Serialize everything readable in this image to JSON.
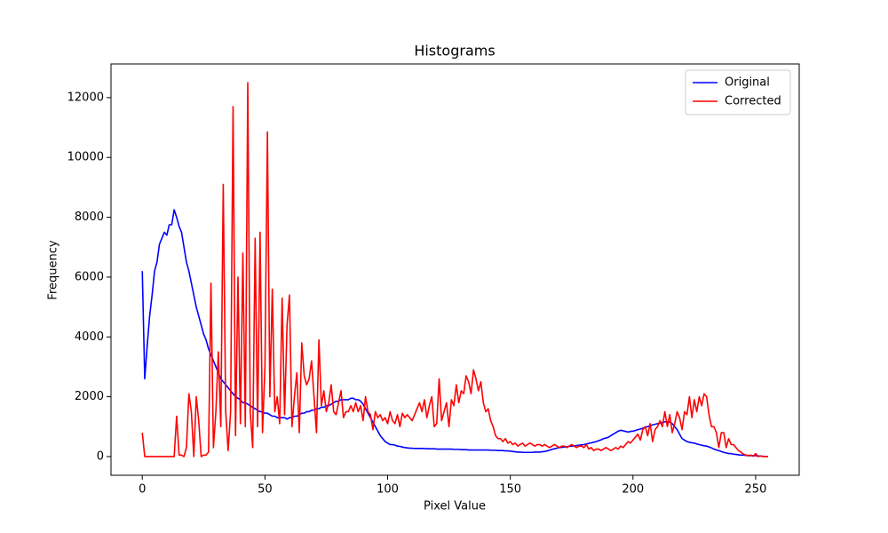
{
  "chart_data": {
    "type": "line",
    "title": "Histograms",
    "x_label": "Pixel Value",
    "y_label": "Frequency",
    "x": [
      0,
      1,
      2,
      3,
      4,
      5,
      6,
      7,
      8,
      9,
      10,
      11,
      12,
      13,
      14,
      15,
      16,
      17,
      18,
      19,
      20,
      21,
      22,
      23,
      24,
      25,
      26,
      27,
      28,
      29,
      30,
      31,
      32,
      33,
      34,
      35,
      36,
      37,
      38,
      39,
      40,
      41,
      42,
      43,
      44,
      45,
      46,
      47,
      48,
      49,
      50,
      51,
      52,
      53,
      54,
      55,
      56,
      57,
      58,
      59,
      60,
      61,
      62,
      63,
      64,
      65,
      66,
      67,
      68,
      69,
      70,
      71,
      72,
      73,
      74,
      75,
      76,
      77,
      78,
      79,
      80,
      81,
      82,
      83,
      84,
      85,
      86,
      87,
      88,
      89,
      90,
      91,
      92,
      93,
      94,
      95,
      96,
      97,
      98,
      99,
      100,
      101,
      102,
      103,
      104,
      105,
      106,
      107,
      108,
      109,
      110,
      111,
      112,
      113,
      114,
      115,
      116,
      117,
      118,
      119,
      120,
      121,
      122,
      123,
      124,
      125,
      126,
      127,
      128,
      129,
      130,
      131,
      132,
      133,
      134,
      135,
      136,
      137,
      138,
      139,
      140,
      141,
      142,
      143,
      144,
      145,
      146,
      147,
      148,
      149,
      150,
      151,
      152,
      153,
      154,
      155,
      156,
      157,
      158,
      159,
      160,
      161,
      162,
      163,
      164,
      165,
      166,
      167,
      168,
      169,
      170,
      171,
      172,
      173,
      174,
      175,
      176,
      177,
      178,
      179,
      180,
      181,
      182,
      183,
      184,
      185,
      186,
      187,
      188,
      189,
      190,
      191,
      192,
      193,
      194,
      195,
      196,
      197,
      198,
      199,
      200,
      201,
      202,
      203,
      204,
      205,
      206,
      207,
      208,
      209,
      210,
      211,
      212,
      213,
      214,
      215,
      216,
      217,
      218,
      219,
      220,
      221,
      222,
      223,
      224,
      225,
      226,
      227,
      228,
      229,
      230,
      231,
      232,
      233,
      234,
      235,
      236,
      237,
      238,
      239,
      240,
      241,
      242,
      243,
      244,
      245,
      246,
      247,
      248,
      249,
      250,
      251,
      252,
      253,
      254,
      255
    ],
    "series": [
      {
        "name": "Original",
        "color": "#0000ff",
        "values": [
          6200,
          2600,
          3700,
          4700,
          5400,
          6200,
          6500,
          7100,
          7300,
          7500,
          7400,
          7750,
          7750,
          8250,
          8000,
          7700,
          7500,
          7000,
          6500,
          6200,
          5800,
          5400,
          5000,
          4700,
          4400,
          4100,
          3900,
          3600,
          3400,
          3200,
          3000,
          2800,
          2600,
          2500,
          2400,
          2300,
          2200,
          2100,
          2000,
          1950,
          1900,
          1800,
          1800,
          1750,
          1700,
          1650,
          1600,
          1550,
          1500,
          1500,
          1450,
          1450,
          1400,
          1350,
          1350,
          1300,
          1300,
          1300,
          1300,
          1250,
          1300,
          1300,
          1350,
          1350,
          1400,
          1450,
          1450,
          1500,
          1500,
          1550,
          1550,
          1600,
          1600,
          1650,
          1650,
          1700,
          1700,
          1750,
          1800,
          1850,
          1850,
          1900,
          1900,
          1900,
          1900,
          1950,
          1950,
          1900,
          1900,
          1850,
          1750,
          1600,
          1450,
          1300,
          1150,
          1000,
          850,
          700,
          600,
          500,
          450,
          400,
          400,
          380,
          350,
          340,
          320,
          300,
          290,
          280,
          280,
          270,
          270,
          270,
          270,
          270,
          260,
          260,
          260,
          260,
          250,
          250,
          250,
          250,
          250,
          250,
          250,
          240,
          240,
          240,
          230,
          230,
          230,
          220,
          220,
          220,
          220,
          220,
          220,
          220,
          220,
          220,
          210,
          210,
          210,
          200,
          200,
          200,
          190,
          190,
          180,
          170,
          160,
          150,
          150,
          140,
          140,
          140,
          140,
          140,
          150,
          150,
          150,
          160,
          170,
          190,
          210,
          240,
          260,
          280,
          300,
          310,
          320,
          330,
          340,
          350,
          360,
          370,
          380,
          390,
          400,
          420,
          440,
          460,
          480,
          500,
          530,
          560,
          600,
          620,
          650,
          700,
          750,
          800,
          850,
          880,
          860,
          840,
          820,
          840,
          850,
          870,
          900,
          920,
          950,
          980,
          1000,
          1030,
          1060,
          1080,
          1100,
          1120,
          1140,
          1160,
          1170,
          1150,
          1100,
          1000,
          900,
          750,
          600,
          550,
          500,
          480,
          460,
          450,
          420,
          400,
          380,
          360,
          350,
          320,
          290,
          250,
          220,
          200,
          170,
          140,
          120,
          100,
          100,
          80,
          70,
          60,
          50,
          50,
          40,
          40,
          30,
          30,
          30,
          20,
          20,
          10,
          5,
          0
        ]
      },
      {
        "name": "Corrected",
        "color": "#ff0000",
        "values": [
          800,
          0,
          0,
          0,
          0,
          0,
          0,
          0,
          0,
          0,
          0,
          0,
          0,
          0,
          1350,
          50,
          50,
          0,
          300,
          2100,
          1500,
          0,
          2000,
          1200,
          0,
          50,
          50,
          150,
          5800,
          300,
          1500,
          3500,
          1000,
          9100,
          1500,
          200,
          1500,
          11700,
          700,
          6000,
          1100,
          6800,
          1000,
          12500,
          1500,
          300,
          7300,
          1000,
          7500,
          800,
          3000,
          10850,
          2000,
          5600,
          1500,
          2000,
          1100,
          5300,
          1400,
          4400,
          5400,
          1000,
          2000,
          2800,
          800,
          3800,
          2700,
          2400,
          2600,
          3200,
          2000,
          800,
          3900,
          1700,
          2200,
          1500,
          1800,
          2400,
          1500,
          1400,
          1800,
          2200,
          1300,
          1500,
          1500,
          1700,
          1500,
          1800,
          1500,
          1700,
          1200,
          2000,
          1500,
          1400,
          900,
          1500,
          1300,
          1400,
          1200,
          1300,
          1100,
          1500,
          1200,
          1100,
          1400,
          1000,
          1450,
          1300,
          1400,
          1300,
          1200,
          1400,
          1600,
          1800,
          1500,
          1900,
          1300,
          1700,
          2000,
          1000,
          1100,
          2600,
          1200,
          1500,
          1800,
          1000,
          1900,
          1700,
          2400,
          1800,
          2200,
          2100,
          2700,
          2500,
          2100,
          2900,
          2600,
          2200,
          2500,
          1800,
          1500,
          1600,
          1200,
          1000,
          700,
          600,
          600,
          500,
          600,
          450,
          500,
          400,
          450,
          350,
          400,
          450,
          350,
          400,
          450,
          400,
          350,
          400,
          400,
          350,
          400,
          350,
          300,
          350,
          400,
          350,
          300,
          350,
          350,
          300,
          350,
          400,
          350,
          300,
          350,
          350,
          300,
          400,
          250,
          300,
          200,
          250,
          250,
          200,
          250,
          300,
          250,
          200,
          250,
          300,
          250,
          350,
          300,
          400,
          500,
          450,
          550,
          650,
          750,
          550,
          900,
          1000,
          700,
          1100,
          500,
          900,
          1000,
          1200,
          1000,
          1500,
          1000,
          1400,
          800,
          1100,
          1500,
          1300,
          900,
          1500,
          1400,
          2000,
          1300,
          1900,
          1500,
          2000,
          1700,
          2100,
          2000,
          1400,
          1000,
          1000,
          800,
          300,
          800,
          800,
          300,
          600,
          400,
          400,
          300,
          200,
          150,
          80,
          50,
          20,
          50,
          10,
          100,
          0,
          20,
          0,
          0,
          0
        ]
      }
    ],
    "xlim": [
      -12.75,
      267.75
    ],
    "xticks": [
      0,
      50,
      100,
      150,
      200,
      250
    ],
    "ylim": [
      -625,
      13125
    ],
    "yticks": [
      0,
      2000,
      4000,
      6000,
      8000,
      10000,
      12000
    ],
    "legend": "upper right",
    "grid": false
  }
}
